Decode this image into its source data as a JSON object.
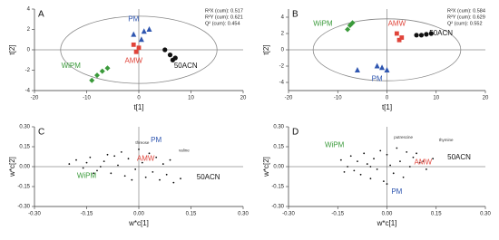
{
  "chart_data": [
    {
      "type": "scatter",
      "label": "A",
      "xlabel": "t[1]",
      "ylabel": "t[2]",
      "xlim": [
        -20,
        20
      ],
      "xticks": [
        -20,
        -10,
        0,
        10,
        20
      ],
      "ylim": [
        -4,
        4
      ],
      "yticks": [
        -4,
        -2,
        0,
        2,
        4
      ],
      "zero_lines": true,
      "stats": [
        "R²X (cum): 0.517",
        "R²Y (cum): 0.621",
        "Q² (cum): 0.454"
      ],
      "ellipse": {
        "cx": 0,
        "cy": 0,
        "rx": 15,
        "ry": 3.3
      },
      "series": [
        {
          "color": "#3a9a3a",
          "marker": "diamond",
          "x": [
            -9,
            -8,
            -7,
            -6
          ],
          "y": [
            -3,
            -2.5,
            -2.1,
            -1.8
          ]
        },
        {
          "color": "#2f56b0",
          "marker": "triangle",
          "x": [
            -1,
            0.5,
            1,
            2
          ],
          "y": [
            1.5,
            1,
            1.8,
            2
          ]
        },
        {
          "color": "#e0443a",
          "marker": "square",
          "x": [
            -1,
            -0.5,
            0
          ],
          "y": [
            0.5,
            -0.2,
            0.2
          ]
        },
        {
          "color": "#111111",
          "marker": "circle",
          "x": [
            5,
            6,
            6.5,
            7
          ],
          "y": [
            0,
            -0.5,
            -1,
            -0.8
          ]
        }
      ],
      "annotations": [
        {
          "text": "WiPM",
          "x": -13,
          "y": -1.6,
          "color": "#3a9a3a"
        },
        {
          "text": "PM",
          "x": -1,
          "y": 3,
          "color": "#2f56b0"
        },
        {
          "text": "AMW",
          "x": -1,
          "y": -1.1,
          "color": "#e0443a"
        },
        {
          "text": "50ACN",
          "x": 9,
          "y": -1.6,
          "color": "#111111"
        }
      ]
    },
    {
      "type": "scatter",
      "label": "B",
      "xlabel": "t[1]",
      "ylabel": "t[2]",
      "xlim": [
        -20,
        20
      ],
      "xticks": [
        -20,
        -10,
        0,
        10,
        20
      ],
      "ylim": [
        -5,
        5
      ],
      "yticks": [
        -4,
        -2,
        0,
        2,
        4
      ],
      "zero_lines": true,
      "stats": [
        "R²X (cum): 0.584",
        "R²Y (cum): 0.629",
        "Q² (cum): 0.552"
      ],
      "ellipse": {
        "cx": 0,
        "cy": 0,
        "rx": 15,
        "ry": 3.8
      },
      "series": [
        {
          "color": "#3a9a3a",
          "marker": "diamond",
          "x": [
            -8,
            -7.5,
            -7
          ],
          "y": [
            2.5,
            3,
            3.3
          ]
        },
        {
          "color": "#e0443a",
          "marker": "square",
          "x": [
            2,
            2.5,
            3
          ],
          "y": [
            2,
            1.2,
            1.5
          ]
        },
        {
          "color": "#111111",
          "marker": "circle",
          "x": [
            6,
            7,
            8,
            9
          ],
          "y": [
            1.8,
            1.8,
            1.9,
            2
          ]
        },
        {
          "color": "#2f56b0",
          "marker": "triangle",
          "x": [
            -6,
            -2,
            -1,
            0
          ],
          "y": [
            -2.5,
            -2,
            -2.2,
            -2.5
          ]
        }
      ],
      "annotations": [
        {
          "text": "WiPM",
          "x": -13,
          "y": 3.2,
          "color": "#3a9a3a"
        },
        {
          "text": "AMW",
          "x": 2,
          "y": 3.2,
          "color": "#e0443a"
        },
        {
          "text": "50ACN",
          "x": 11,
          "y": 2,
          "color": "#111111"
        },
        {
          "text": "PM",
          "x": -2,
          "y": -3.6,
          "color": "#2f56b0"
        }
      ]
    },
    {
      "type": "scatter",
      "label": "C",
      "xlabel": "w*c[1]",
      "ylabel": "w*c[2]",
      "xlim": [
        -0.3,
        0.3
      ],
      "xticks": [
        {
          "value": -0.3,
          "label": "-0.30"
        },
        -0.15,
        {
          "value": 0,
          "label": "0.00"
        },
        0.15,
        {
          "value": 0.3,
          "label": "0.30"
        }
      ],
      "ylim": [
        -0.3,
        0.3
      ],
      "yticks": [
        {
          "value": -0.3,
          "label": "-0.30"
        },
        -0.15,
        {
          "value": 0,
          "label": "0.00"
        },
        0.15,
        {
          "value": 0.3,
          "label": "0.30"
        }
      ],
      "zero_lines": true,
      "series": [
        {
          "color": "#111111",
          "marker": "dot",
          "x": [
            -0.2,
            -0.18,
            -0.16,
            -0.15,
            -0.14,
            -0.12,
            -0.1,
            -0.09,
            -0.08,
            -0.06,
            -0.05,
            -0.04,
            -0.03,
            -0.02,
            0,
            0.01,
            0.02,
            0.03,
            0.04,
            0.05,
            0.06,
            0.07,
            0.08,
            0.1,
            0.12,
            -0.11,
            -0.07,
            -0.01,
            0.09,
            -0.13
          ],
          "y": [
            0.02,
            0.05,
            -0.01,
            0.03,
            0.07,
            -0.03,
            0.04,
            0.09,
            -0.05,
            0.01,
            0.11,
            -0.07,
            0.06,
            -0.1,
            0.13,
            0.03,
            -0.08,
            0.1,
            -0.04,
            0.07,
            -0.1,
            0.02,
            -0.06,
            -0.12,
            -0.09,
            0.0,
            0.08,
            -0.02,
            0.05,
            -0.05
          ]
        }
      ],
      "annotations": [
        {
          "text": "PM",
          "x": 0.05,
          "y": 0.2,
          "color": "#2f56b0"
        },
        {
          "text": "AMW",
          "x": 0.02,
          "y": 0.06,
          "color": "#e0443a"
        },
        {
          "text": "WiPM",
          "x": -0.15,
          "y": -0.07,
          "color": "#3a9a3a"
        },
        {
          "text": "50ACN",
          "x": 0.2,
          "y": -0.08,
          "color": "#111111"
        },
        {
          "text": "threose",
          "x": 0.01,
          "y": 0.18,
          "color": "#333333"
        },
        {
          "text": "valine",
          "x": 0.13,
          "y": 0.12,
          "color": "#333333"
        }
      ]
    },
    {
      "type": "scatter",
      "label": "D",
      "xlabel": "w*c[1]",
      "ylabel": "w*c[2]",
      "xlim": [
        -0.3,
        0.3
      ],
      "xticks": [
        {
          "value": -0.3,
          "label": "-0.30"
        },
        -0.15,
        {
          "value": 0,
          "label": "0.00"
        },
        0.15,
        {
          "value": 0.3,
          "label": "0.30"
        }
      ],
      "ylim": [
        -0.3,
        0.3
      ],
      "yticks": [
        {
          "value": -0.3,
          "label": "-0.30"
        },
        -0.15,
        {
          "value": 0,
          "label": "0.00"
        },
        0.15,
        {
          "value": 0.3,
          "label": "0.30"
        }
      ],
      "zero_lines": true,
      "series": [
        {
          "color": "#111111",
          "marker": "dot",
          "x": [
            -0.14,
            -0.12,
            -0.11,
            -0.1,
            -0.09,
            -0.08,
            -0.07,
            -0.06,
            -0.05,
            -0.04,
            -0.03,
            -0.02,
            -0.01,
            0,
            0.01,
            0.02,
            0.03,
            0.04,
            0.05,
            0.06,
            0.07,
            0.08,
            0.1,
            0.12,
            0.14,
            -0.13,
            -0.05,
            0.0,
            0.09,
            0.11
          ],
          "y": [
            0.05,
            0.0,
            0.08,
            -0.03,
            0.04,
            -0.06,
            0.1,
            0.02,
            -0.09,
            0.06,
            -0.02,
            0.12,
            -0.11,
            0.09,
            0.01,
            -0.05,
            0.14,
            0.04,
            -0.08,
            0.11,
            0.0,
            0.07,
            0.03,
            -0.02,
            0.06,
            -0.04,
            0.0,
            -0.13,
            0.1,
            0.04
          ]
        }
      ],
      "annotations": [
        {
          "text": "WiPM",
          "x": -0.16,
          "y": 0.16,
          "color": "#3a9a3a"
        },
        {
          "text": "50ACN",
          "x": 0.22,
          "y": 0.07,
          "color": "#111111"
        },
        {
          "text": "AMW",
          "x": 0.11,
          "y": 0.03,
          "color": "#e0443a"
        },
        {
          "text": "PM",
          "x": 0.03,
          "y": -0.19,
          "color": "#2f56b0"
        },
        {
          "text": "thymine",
          "x": 0.18,
          "y": 0.2,
          "color": "#333333"
        },
        {
          "text": "putrescine",
          "x": 0.05,
          "y": 0.22,
          "color": "#333333"
        }
      ]
    }
  ]
}
